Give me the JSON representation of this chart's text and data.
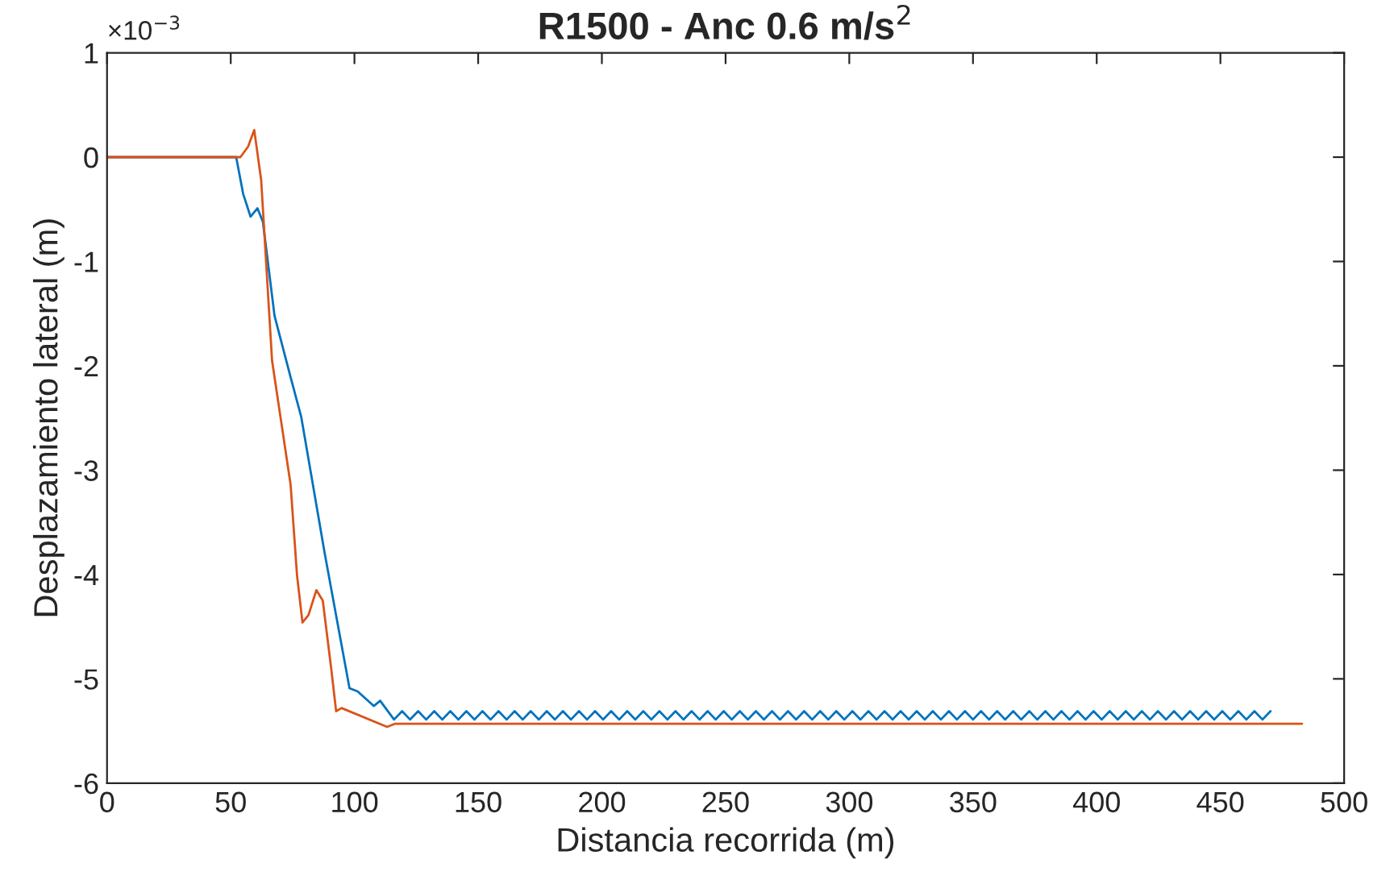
{
  "chart_data": {
    "type": "line",
    "title": "R1500 - Anc 0.6 m/s$^{2}$",
    "xlabel": "Distancia recorrida (m)",
    "ylabel": "Desplazamiento lateral (m)",
    "annotations": [
      "×10$^{−3}$"
    ],
    "xlim": [
      0,
      500
    ],
    "xticks": [
      0,
      50,
      100,
      150,
      200,
      250,
      300,
      350,
      400,
      450,
      500
    ],
    "ylim": [
      -6,
      1
    ],
    "yticks": [
      -6,
      -5,
      -4,
      -3,
      -2,
      -1,
      0,
      1
    ],
    "grid": false,
    "legend": false,
    "marker": "none",
    "line_style": "solid",
    "series": [
      {
        "color": "#0072bd",
        "x": [
          0,
          52.2,
          55,
          58,
          60.8,
          63,
          67.7,
          74.2,
          78.5,
          88,
          98,
          101.3,
          107.8,
          110.4,
          116,
          119.25,
          122.5,
          125.75,
          129,
          132.25,
          135.5,
          138.75,
          142,
          145.25,
          148.5,
          151.75,
          155,
          158.25,
          161.5,
          164.75,
          168,
          171.25,
          174.5,
          177.75,
          181,
          184.25,
          187.5,
          190.75,
          194,
          197.25,
          200.5,
          203.75,
          207,
          210.25,
          213.5,
          216.75,
          220,
          223.25,
          226.5,
          229.75,
          233,
          236.25,
          239.5,
          242.75,
          246,
          249.25,
          252.5,
          255.75,
          259,
          262.25,
          265.5,
          268.75,
          272,
          275.25,
          278.5,
          281.75,
          285,
          288.25,
          291.5,
          294.75,
          298,
          301.25,
          304.5,
          307.75,
          311,
          314.25,
          317.5,
          320.75,
          324,
          327.25,
          330.5,
          333.75,
          337,
          340.25,
          343.5,
          346.75,
          350,
          353.25,
          356.5,
          359.75,
          363,
          366.25,
          369.5,
          372.75,
          376,
          379.25,
          382.5,
          385.75,
          389,
          392.25,
          395.5,
          398.75,
          402,
          405.25,
          408.5,
          411.75,
          415,
          418.25,
          421.5,
          424.75,
          428,
          431.25,
          434.5,
          437.75,
          441,
          444.25,
          447.5,
          450.75,
          454,
          457.25,
          460.5,
          463.75,
          467,
          470.25
        ],
        "values": [
          0,
          0,
          -0.35,
          -0.57,
          -0.49,
          -0.62,
          -1.52,
          -2.11,
          -2.49,
          -3.8,
          -5.09,
          -5.12,
          -5.26,
          -5.21,
          -5.39,
          -5.31,
          -5.39,
          -5.31,
          -5.39,
          -5.31,
          -5.39,
          -5.31,
          -5.39,
          -5.31,
          -5.39,
          -5.31,
          -5.39,
          -5.31,
          -5.39,
          -5.31,
          -5.39,
          -5.31,
          -5.39,
          -5.31,
          -5.39,
          -5.31,
          -5.39,
          -5.31,
          -5.39,
          -5.31,
          -5.39,
          -5.31,
          -5.39,
          -5.31,
          -5.39,
          -5.31,
          -5.39,
          -5.31,
          -5.39,
          -5.31,
          -5.39,
          -5.31,
          -5.39,
          -5.31,
          -5.39,
          -5.31,
          -5.39,
          -5.31,
          -5.39,
          -5.31,
          -5.39,
          -5.31,
          -5.39,
          -5.31,
          -5.39,
          -5.31,
          -5.39,
          -5.31,
          -5.39,
          -5.31,
          -5.39,
          -5.31,
          -5.39,
          -5.31,
          -5.39,
          -5.31,
          -5.39,
          -5.31,
          -5.39,
          -5.31,
          -5.39,
          -5.31,
          -5.39,
          -5.31,
          -5.39,
          -5.31,
          -5.39,
          -5.31,
          -5.39,
          -5.31,
          -5.39,
          -5.31,
          -5.39,
          -5.31,
          -5.39,
          -5.31,
          -5.39,
          -5.31,
          -5.39,
          -5.31,
          -5.39,
          -5.31,
          -5.39,
          -5.31,
          -5.39,
          -5.31,
          -5.39,
          -5.31,
          -5.39,
          -5.31,
          -5.39,
          -5.31,
          -5.39,
          -5.31,
          -5.39,
          -5.31,
          -5.39,
          -5.31,
          -5.39,
          -5.31,
          -5.39,
          -5.31,
          -5.39,
          -5.31
        ]
      },
      {
        "color": "#d95319",
        "x": [
          0,
          53.9,
          57,
          59.5,
          62.3,
          66.7,
          74.2,
          76.8,
          79,
          81.4,
          84.6,
          87.2,
          90.5,
          92.6,
          94.8,
          113.2,
          116.5,
          483
        ],
        "values": [
          0,
          0,
          0.1,
          0.26,
          -0.22,
          -1.95,
          -3.14,
          -4.01,
          -4.46,
          -4.39,
          -4.15,
          -4.25,
          -4.88,
          -5.31,
          -5.28,
          -5.46,
          -5.43,
          -5.43
        ]
      }
    ]
  }
}
